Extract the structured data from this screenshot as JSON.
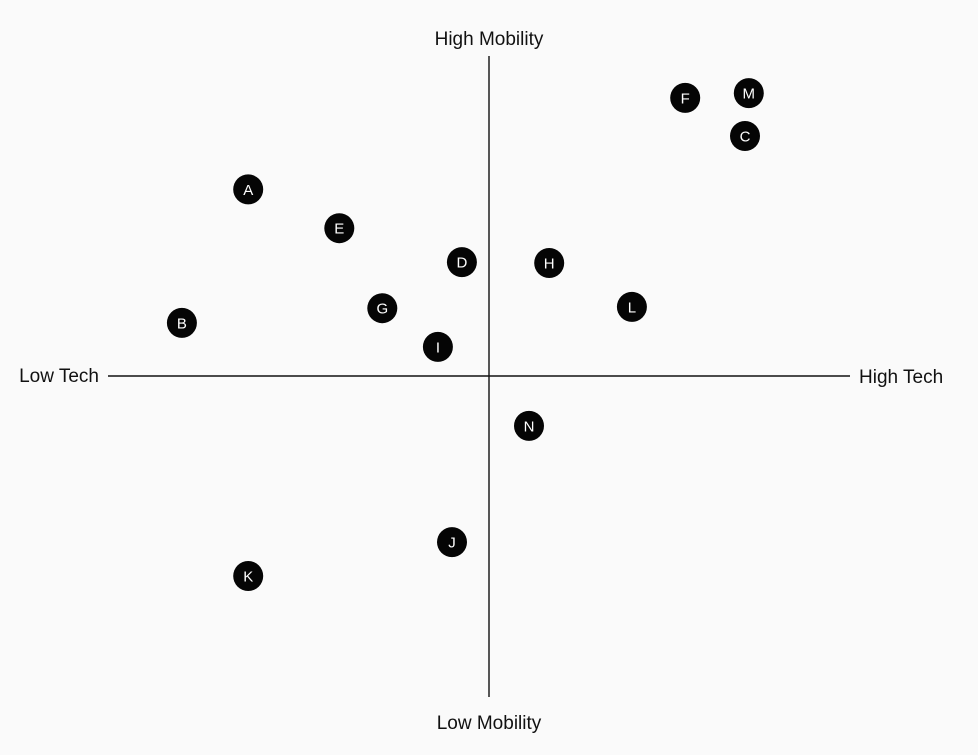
{
  "chart_data": {
    "type": "scatter",
    "axes": {
      "x_min_label": "Low Tech",
      "x_max_label": "High Tech",
      "y_min_label": "Low Mobility",
      "y_max_label": "High Mobility"
    },
    "xlim": [
      -1,
      1
    ],
    "ylim": [
      -1,
      1
    ],
    "grid": false,
    "points": [
      {
        "label": "A",
        "x": -0.632,
        "y": 0.583
      },
      {
        "label": "B",
        "x": -0.806,
        "y": 0.166
      },
      {
        "label": "C",
        "x": 0.672,
        "y": 0.75
      },
      {
        "label": "D",
        "x": -0.071,
        "y": 0.356
      },
      {
        "label": "E",
        "x": -0.393,
        "y": 0.462
      },
      {
        "label": "F",
        "x": 0.515,
        "y": 0.869
      },
      {
        "label": "G",
        "x": -0.28,
        "y": 0.212
      },
      {
        "label": "H",
        "x": 0.158,
        "y": 0.353
      },
      {
        "label": "I",
        "x": -0.134,
        "y": 0.091
      },
      {
        "label": "J",
        "x": -0.097,
        "y": -0.519
      },
      {
        "label": "K",
        "x": -0.632,
        "y": -0.625
      },
      {
        "label": "L",
        "x": 0.375,
        "y": 0.216
      },
      {
        "label": "M",
        "x": 0.682,
        "y": 0.884
      },
      {
        "label": "N",
        "x": 0.105,
        "y": -0.156
      }
    ]
  }
}
